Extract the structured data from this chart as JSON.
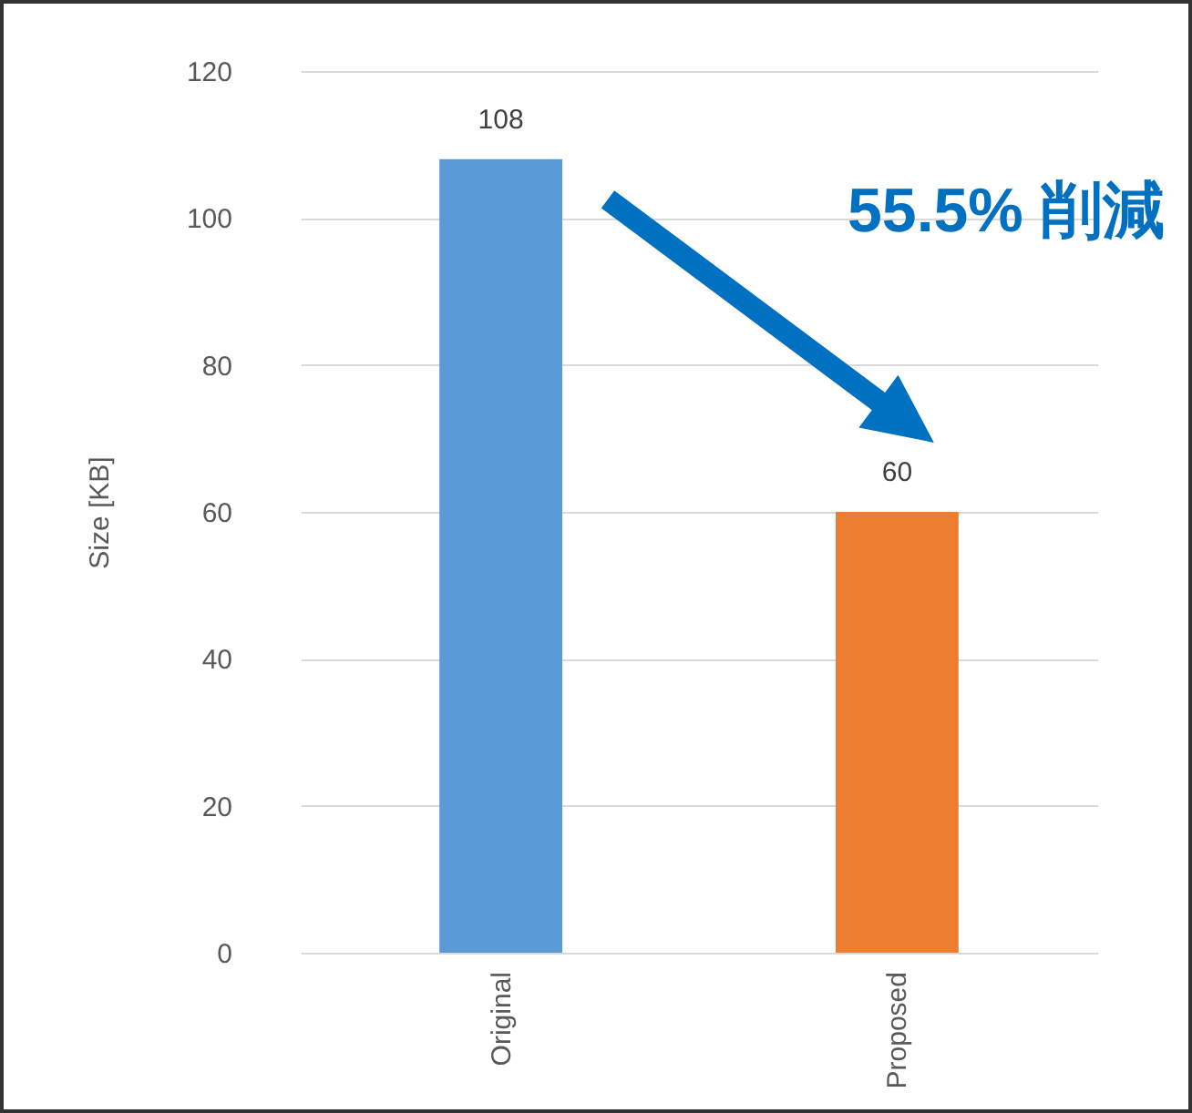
{
  "chart_data": {
    "type": "bar",
    "ylabel": "Size [KB]",
    "categories": [
      "Original",
      "Proposed"
    ],
    "values": [
      108,
      60
    ],
    "colors": [
      "#5b9bd5",
      "#ed7d31"
    ],
    "ylim": [
      0,
      120
    ],
    "yticks": [
      0,
      20,
      40,
      60,
      80,
      100,
      120
    ],
    "grid": "y",
    "data_labels": true,
    "annotations": [
      "55.5% 削減"
    ]
  }
}
